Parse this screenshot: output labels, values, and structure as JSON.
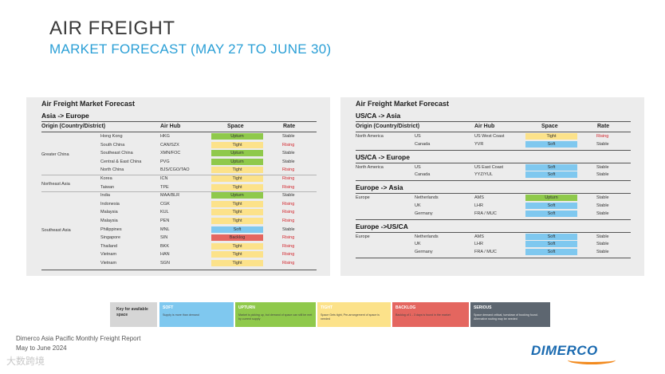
{
  "header": {
    "title": "AIR FREIGHT",
    "subtitle": "MARKET FORECAST (MAY 27 TO JUNE 30)"
  },
  "colors": {
    "tight": "#fce28a",
    "upturn": "#8fc94b",
    "soft": "#7fc8ef",
    "backlog": "#e4665f",
    "serious": "#5d6670",
    "rising": "#d2232a",
    "accent": "#2a9fd6"
  },
  "left": {
    "panel_title": "Air Freight Market Forecast",
    "section": "Asia -> Europe",
    "headers": {
      "origin": "Origin (Country/District)",
      "hub": "Air Hub",
      "space": "Space",
      "rate": "Rate"
    },
    "groups": [
      {
        "name": "Greater China",
        "rows": [
          {
            "country": "Hong Kong",
            "hub": "HKG",
            "space": "Upturn",
            "rate": "Stable"
          },
          {
            "country": "South China",
            "hub": "CAN/SZX",
            "space": "Tight",
            "rate": "Rising"
          },
          {
            "country": "Southeast China",
            "hub": "XMN/FOC",
            "space": "Upturn",
            "rate": "Stable"
          },
          {
            "country": "Central & East China",
            "hub": "PVG",
            "space": "Upturn",
            "rate": "Stable"
          },
          {
            "country": "North China",
            "hub": "BJS/CGO/TAO",
            "space": "Tight",
            "rate": "Rising"
          }
        ]
      },
      {
        "name": "Northeast Asia",
        "rows": [
          {
            "country": "Korea",
            "hub": "ICN",
            "space": "Tight",
            "rate": "Rising"
          },
          {
            "country": "Taiwan",
            "hub": "TPE",
            "space": "Tight",
            "rate": "Rising"
          }
        ]
      },
      {
        "name": "Southeast Asia",
        "rows": [
          {
            "country": "India",
            "hub": "MAA/BLR",
            "space": "Upturn",
            "rate": "Stable"
          },
          {
            "country": "Indonesia",
            "hub": "CGK",
            "space": "Tight",
            "rate": "Rising"
          },
          {
            "country": "Malaysia",
            "hub": "KUL",
            "space": "Tight",
            "rate": "Rising"
          },
          {
            "country": "Malaysia",
            "hub": "PEN",
            "space": "Tight",
            "rate": "Rising"
          },
          {
            "country": "Philippines",
            "hub": "MNL",
            "space": "Soft",
            "rate": "Stable"
          },
          {
            "country": "Singapore",
            "hub": "SIN",
            "space": "Backlog",
            "rate": "Rising"
          },
          {
            "country": "Thailand",
            "hub": "BKK",
            "space": "Tight",
            "rate": "Rising"
          },
          {
            "country": "Vietnam",
            "hub": "HAN",
            "space": "Tight",
            "rate": "Rising"
          },
          {
            "country": "Vietnam",
            "hub": "SGN",
            "space": "Tight",
            "rate": "Rising"
          }
        ]
      }
    ]
  },
  "right": {
    "panel_title": "Air Freight Market Forecast",
    "headers": {
      "origin": "Origin (Country/District)",
      "hub": "Air Hub",
      "space": "Space",
      "rate": "Rate"
    },
    "sections": [
      {
        "title": "US/CA -> Asia",
        "region": "North America",
        "rows": [
          {
            "country": "US",
            "hub": "US West Coast",
            "space": "Tight",
            "rate": "Rising"
          },
          {
            "country": "Canada",
            "hub": "YVR",
            "space": "Soft",
            "rate": "Stable"
          }
        ]
      },
      {
        "title": "US/CA -> Europe",
        "region": "North America",
        "rows": [
          {
            "country": "US",
            "hub": "US East Coast",
            "space": "Soft",
            "rate": "Stable"
          },
          {
            "country": "Canada",
            "hub": "YYZ/YUL",
            "space": "Soft",
            "rate": "Stable"
          }
        ]
      },
      {
        "title": "Europe -> Asia",
        "region": "Europe",
        "rows": [
          {
            "country": "Netherlands",
            "hub": "AMS",
            "space": "Upturn",
            "rate": "Stable"
          },
          {
            "country": "UK",
            "hub": "LHR",
            "space": "Soft",
            "rate": "Stable"
          },
          {
            "country": "Germany",
            "hub": "FRA / MUC",
            "space": "Soft",
            "rate": "Stable"
          }
        ]
      },
      {
        "title": "Europe ->US/CA",
        "region": "Europe",
        "rows": [
          {
            "country": "Netherlands",
            "hub": "AMS",
            "space": "Soft",
            "rate": "Stable"
          },
          {
            "country": "UK",
            "hub": "LHR",
            "space": "Soft",
            "rate": "Stable"
          },
          {
            "country": "Germany",
            "hub": "FRA / MUC",
            "space": "Soft",
            "rate": "Stable"
          }
        ]
      }
    ]
  },
  "legend": {
    "key_label": "Key for available space",
    "items": [
      {
        "title": "SOFT",
        "desc": "Supply is more than demand",
        "color": "#7fc8ef"
      },
      {
        "title": "UPTURN",
        "desc": "Market is picking up, but demand of space can still be met by current supply",
        "color": "#8fc94b"
      },
      {
        "title": "TIGHT",
        "desc": "Space Gets tight, Pre-arrangement of space is needed",
        "color": "#fce28a"
      },
      {
        "title": "BACKLOG",
        "desc": "Backlog of 1 - 3 days is found in the market",
        "color": "#e4665f"
      },
      {
        "title": "SERIOUS",
        "desc": "Space demand critical, turndown of booking found. Alternative routing may be needed",
        "color": "#5d6670"
      }
    ]
  },
  "footer": {
    "report": "Dimerco Asia Pacific Monthly Freight Report",
    "period": "May to June 2024",
    "watermark": "大数跨境",
    "logo": "DIMERCO"
  }
}
